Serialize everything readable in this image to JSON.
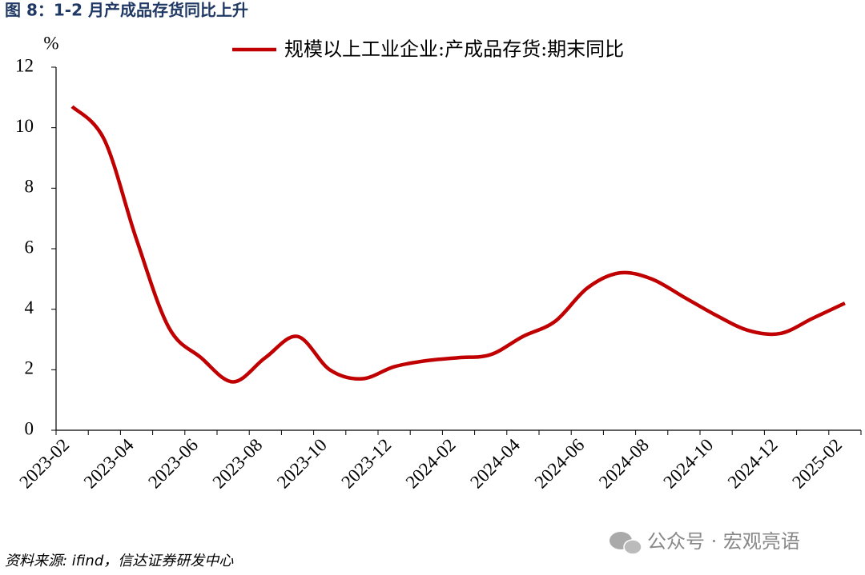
{
  "chart_data": {
    "type": "line",
    "title": "图 8：1-2 月产成品存货同比上升",
    "y_unit": "%",
    "source": "资料来源: ifind，信达证券研发中心",
    "watermark": "公众号 · 宏观亮语",
    "categories": [
      "2023-02",
      null,
      "2023-04",
      null,
      "2023-06",
      null,
      "2023-08",
      null,
      "2023-10",
      null,
      "2023-12",
      null,
      "2024-02",
      null,
      "2024-04",
      null,
      "2024-06",
      null,
      "2024-08",
      null,
      "2024-10",
      null,
      "2024-12",
      null,
      "2025-02"
    ],
    "series": [
      {
        "name": "规模以上工业企业:产成品存货:期末同比",
        "color": "#c00000",
        "values": [
          10.7,
          9.6,
          6.3,
          3.4,
          2.4,
          1.6,
          2.4,
          3.1,
          2.0,
          1.7,
          2.1,
          2.3,
          2.4,
          2.5,
          3.1,
          3.6,
          4.7,
          5.2,
          5.0,
          4.4,
          3.8,
          3.3,
          3.2,
          3.7,
          4.2
        ]
      }
    ],
    "ylim": [
      0,
      12
    ],
    "yticks": [
      0,
      2,
      4,
      6,
      8,
      10,
      12
    ],
    "legend": "top"
  }
}
